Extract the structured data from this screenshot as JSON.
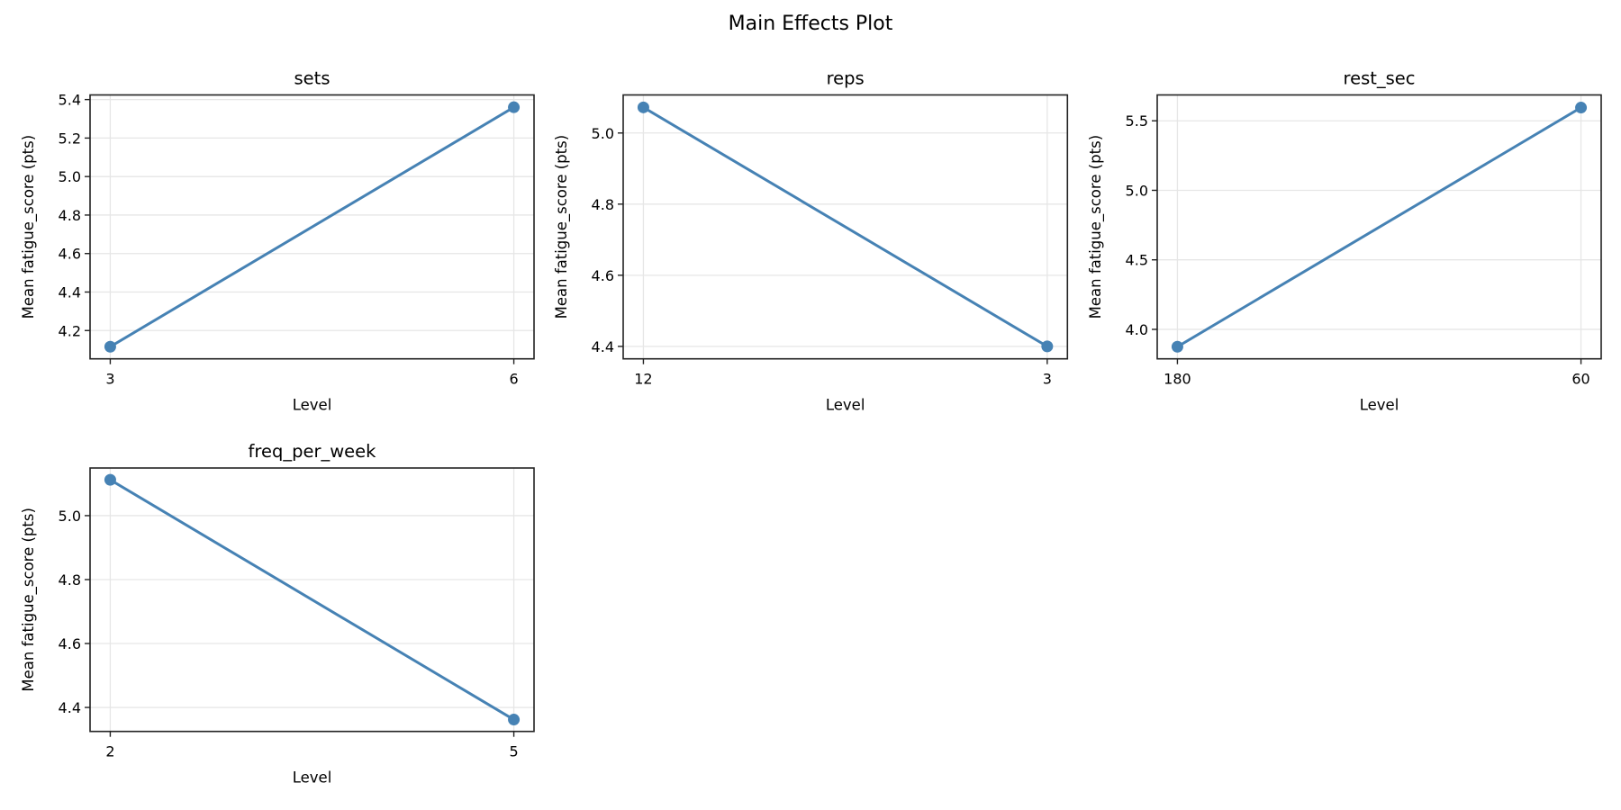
{
  "title": "Main Effects Plot",
  "colors": {
    "line": "#4682B4",
    "grid": "#e6e6e6",
    "spine": "#222222"
  },
  "chart_data": [
    {
      "type": "line",
      "title": "sets",
      "xlabel": "Level",
      "ylabel": "Mean fatigue_score (pts)",
      "categories": [
        "3",
        "6"
      ],
      "values": [
        4.116,
        5.36
      ],
      "yticks": [
        4.2,
        4.4,
        4.6,
        4.8,
        5.0,
        5.2,
        5.4
      ],
      "ytick_labels": [
        "4.2",
        "4.4",
        "4.6",
        "4.8",
        "5.0",
        "5.2",
        "5.4"
      ],
      "ylim": [
        4.053,
        5.424
      ],
      "grid": true
    },
    {
      "type": "line",
      "title": "reps",
      "xlabel": "Level",
      "ylabel": "Mean fatigue_score (pts)",
      "categories": [
        "12",
        "3"
      ],
      "values": [
        5.072,
        4.4
      ],
      "yticks": [
        4.4,
        4.6,
        4.8,
        5.0
      ],
      "ytick_labels": [
        "4.4",
        "4.6",
        "4.8",
        "5.0"
      ],
      "ylim": [
        4.365,
        5.107
      ],
      "grid": true
    },
    {
      "type": "line",
      "title": "rest_sec",
      "xlabel": "Level",
      "ylabel": "Mean fatigue_score (pts)",
      "categories": [
        "180",
        "60"
      ],
      "values": [
        3.875,
        5.595
      ],
      "yticks": [
        4.0,
        4.5,
        5.0,
        5.5
      ],
      "ytick_labels": [
        "4.0",
        "4.5",
        "5.0",
        "5.5"
      ],
      "ylim": [
        3.788,
        5.686
      ],
      "grid": true
    },
    {
      "type": "line",
      "title": "freq_per_week",
      "xlabel": "Level",
      "ylabel": "Mean fatigue_score (pts)",
      "categories": [
        "2",
        "5"
      ],
      "values": [
        5.112,
        4.362
      ],
      "yticks": [
        4.4,
        4.6,
        4.8,
        5.0
      ],
      "ytick_labels": [
        "4.4",
        "4.6",
        "4.8",
        "5.0"
      ],
      "ylim": [
        4.325,
        5.149
      ],
      "grid": true
    }
  ]
}
